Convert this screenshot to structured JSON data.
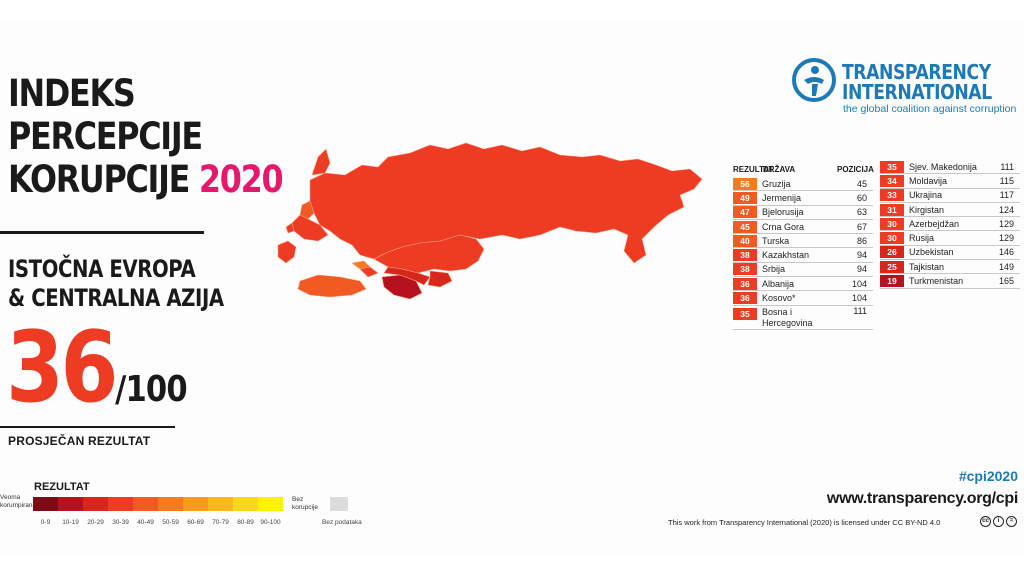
{
  "title": {
    "line1": "INDEKS",
    "line2": "PERCEPCIJE",
    "line3": "KORUPCIJE",
    "year": "2020"
  },
  "region": {
    "line1": "ISTOČNA EVROPA",
    "line2": "& CENTRALNA AZIJA"
  },
  "score": {
    "value": "36",
    "out_of": "/100",
    "label": "PROSJEČAN REZULTAT"
  },
  "legend": {
    "title": "REZULTAT",
    "left_label_1": "Veoma",
    "left_label_2": "korumpirana",
    "right_label_1": "Bez",
    "right_label_2": "korupcije",
    "ranges": [
      "0-9",
      "10-19",
      "20-29",
      "30-39",
      "40-49",
      "50-59",
      "60-69",
      "70-79",
      "80-89",
      "90-100"
    ],
    "colors": [
      "#7d0a14",
      "#b5111e",
      "#d7271c",
      "#ee3b24",
      "#f15a22",
      "#f47c20",
      "#f79b1c",
      "#f9b91a",
      "#fbd81d",
      "#fff200"
    ],
    "no_data_label": "Bez podataka",
    "no_data_color": "#dcdcdc"
  },
  "logo": {
    "name_line1": "TRANSPARENCY",
    "name_line2": "INTERNATIONAL",
    "tagline": "the global coalition against corruption",
    "brand_color": "#1d7ab7"
  },
  "table": {
    "header_score": "REZULTAT",
    "header_country": "DRŽAVA",
    "header_rank": "POZICIJA",
    "col1": [
      {
        "score": "56",
        "country": "Gruzija",
        "rank": "45",
        "color": "#f47c20"
      },
      {
        "score": "49",
        "country": "Jermenija",
        "rank": "60",
        "color": "#f15a22"
      },
      {
        "score": "47",
        "country": "Bjelorusija",
        "rank": "63",
        "color": "#f15a22"
      },
      {
        "score": "45",
        "country": "Crna Gora",
        "rank": "67",
        "color": "#f15a22"
      },
      {
        "score": "40",
        "country": "Turska",
        "rank": "86",
        "color": "#f15a22"
      },
      {
        "score": "38",
        "country": "Kazakhstan",
        "rank": "94",
        "color": "#ee3b24"
      },
      {
        "score": "38",
        "country": "Srbija",
        "rank": "94",
        "color": "#ee3b24"
      },
      {
        "score": "36",
        "country": "Albanija",
        "rank": "104",
        "color": "#ee3b24"
      },
      {
        "score": "36",
        "country": "Kosovo*",
        "rank": "104",
        "color": "#ee3b24"
      },
      {
        "score": "35",
        "country": "Bosna i Hercegovina",
        "rank": "111",
        "color": "#ee3b24"
      }
    ],
    "col2": [
      {
        "score": "35",
        "country": "Sjev. Makedonija",
        "rank": "111",
        "color": "#ee3b24"
      },
      {
        "score": "34",
        "country": "Moldavija",
        "rank": "115",
        "color": "#ee3b24"
      },
      {
        "score": "33",
        "country": "Ukrajina",
        "rank": "117",
        "color": "#ee3b24"
      },
      {
        "score": "31",
        "country": "Kirgistan",
        "rank": "124",
        "color": "#ee3b24"
      },
      {
        "score": "30",
        "country": "Azerbejdžan",
        "rank": "129",
        "color": "#ee3b24"
      },
      {
        "score": "30",
        "country": "Rusija",
        "rank": "129",
        "color": "#ee3b24"
      },
      {
        "score": "26",
        "country": "Uzbekistan",
        "rank": "146",
        "color": "#d7271c"
      },
      {
        "score": "25",
        "country": "Tajkistan",
        "rank": "149",
        "color": "#d7271c"
      },
      {
        "score": "19",
        "country": "Turkmenistan",
        "rank": "165",
        "color": "#b5111e"
      }
    ]
  },
  "footer": {
    "hashtag": "#cpi2020",
    "website": "www.transparency.org/cpi",
    "license": "This work from Transparency International (2020) is licensed under CC BY-ND 4.0",
    "hashtag_color": "#1d7ab7"
  }
}
